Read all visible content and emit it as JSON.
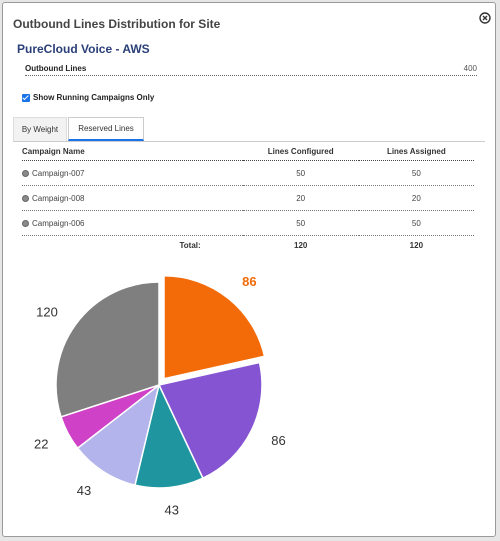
{
  "dialog": {
    "title": "Outbound Lines Distribution for Site",
    "close_icon": "close-circle-icon",
    "site_name": "PureCloud Voice - AWS",
    "outbound_lines_label": "Outbound Lines",
    "outbound_lines_value": "400",
    "checkbox_label": "Show Running Campaigns Only",
    "checkbox_checked": true,
    "tabs": [
      {
        "label": "By Weight",
        "selected": false
      },
      {
        "label": "Reserved Lines",
        "selected": true
      }
    ]
  },
  "table": {
    "headers": [
      "Campaign Name",
      "Lines Configured",
      "Lines Assigned"
    ],
    "rows": [
      {
        "name": "Campaign-007",
        "configured": "50",
        "assigned": "50"
      },
      {
        "name": "Campaign-008",
        "configured": "20",
        "assigned": "20"
      },
      {
        "name": "Campaign-006",
        "configured": "50",
        "assigned": "50"
      }
    ],
    "total": {
      "label": "Total:",
      "configured": "120",
      "assigned": "120"
    }
  },
  "chart_data": {
    "type": "pie",
    "slices": [
      {
        "value": 86,
        "label": "86",
        "color": "#f26b08",
        "exploded": true,
        "label_color": "#f26b08"
      },
      {
        "value": 86,
        "label": "86",
        "color": "#8454d3"
      },
      {
        "value": 43,
        "label": "43",
        "color": "#1f959f"
      },
      {
        "value": 43,
        "label": "43",
        "color": "#b3b4eb"
      },
      {
        "value": 22,
        "label": "22",
        "color": "#cf41c6"
      },
      {
        "value": 120,
        "label": "120",
        "color": "#7f7f7f"
      }
    ]
  }
}
